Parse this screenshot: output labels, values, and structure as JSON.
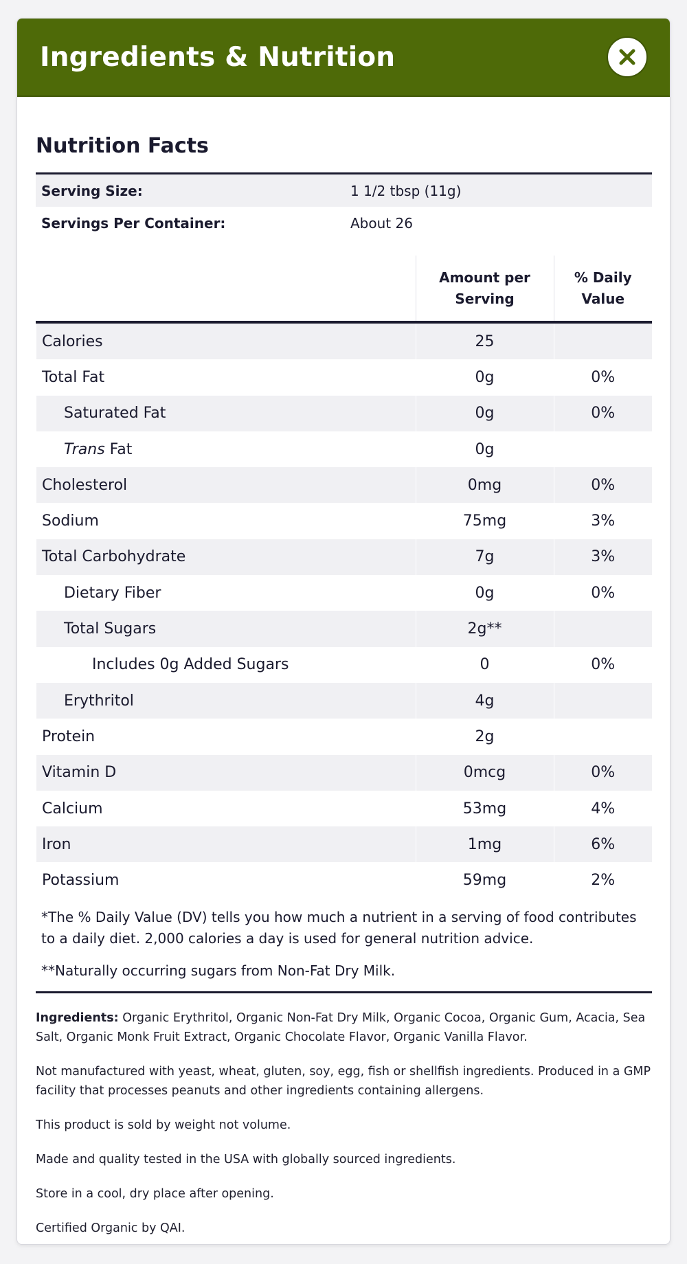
{
  "header": {
    "title": "Ingredients & Nutrition",
    "close_icon": "close-x-icon",
    "accent_color": "#4e6a08"
  },
  "nutrition": {
    "title": "Nutrition Facts",
    "serving_size_label": "Serving Size:",
    "serving_size_value": "1 1/2 tbsp (11g)",
    "servings_label": "Servings Per Container:",
    "servings_value": "About 26",
    "col_amount_line1": "Amount per",
    "col_amount_line2": "Serving",
    "col_dv": "% Daily Value",
    "rows": [
      {
        "name": "Calories",
        "amount": "25",
        "dv": "",
        "indent": 0
      },
      {
        "name": "Total Fat",
        "amount": "0g",
        "dv": "0%",
        "indent": 0
      },
      {
        "name": "Saturated Fat",
        "amount": "0g",
        "dv": "0%",
        "indent": 1
      },
      {
        "name_italic": "Trans",
        "name": " Fat",
        "amount": "0g",
        "dv": "",
        "indent": 1
      },
      {
        "name": "Cholesterol",
        "amount": "0mg",
        "dv": "0%",
        "indent": 0
      },
      {
        "name": "Sodium",
        "amount": "75mg",
        "dv": "3%",
        "indent": 0
      },
      {
        "name": "Total Carbohydrate",
        "amount": "7g",
        "dv": "3%",
        "indent": 0
      },
      {
        "name": "Dietary Fiber",
        "amount": "0g",
        "dv": "0%",
        "indent": 1
      },
      {
        "name": "Total Sugars",
        "amount": "2g**",
        "dv": "",
        "indent": 1
      },
      {
        "name": "Includes 0g Added Sugars",
        "amount": "0",
        "dv": "0%",
        "indent": 2
      },
      {
        "name": "Erythritol",
        "amount": "4g",
        "dv": "",
        "indent": 1
      },
      {
        "name": "Protein",
        "amount": "2g",
        "dv": "",
        "indent": 0
      },
      {
        "name": "Vitamin D",
        "amount": "0mcg",
        "dv": "0%",
        "indent": 0
      },
      {
        "name": "Calcium",
        "amount": "53mg",
        "dv": "4%",
        "indent": 0
      },
      {
        "name": "Iron",
        "amount": "1mg",
        "dv": "6%",
        "indent": 0
      },
      {
        "name": "Potassium",
        "amount": "59mg",
        "dv": "2%",
        "indent": 0
      }
    ],
    "footnote_dv": "*The % Daily Value (DV) tells you how much a nutrient in a serving of food contributes to a daily diet. 2,000 calories a day is used for general nutrition advice.",
    "footnote_sugars": "**Naturally occurring sugars from Non-Fat Dry Milk."
  },
  "ingredients": {
    "label": "Ingredients:",
    "text": " Organic Erythritol, Organic Non-Fat Dry Milk, Organic Cocoa, Organic Gum, Acacia, Sea Salt, Organic Monk Fruit Extract, Organic Chocolate Flavor, Organic Vanilla Flavor.",
    "notes": [
      "Not manufactured with yeast, wheat, gluten, soy, egg, fish or shellfish ingredients. Produced in a GMP facility that processes peanuts and other ingredients containing allergens.",
      "This product is sold by weight not volume.",
      "Made and quality tested in the USA with globally sourced ingredients.",
      "Store in a cool, dry place after opening.",
      "Certified Organic by QAI."
    ]
  }
}
